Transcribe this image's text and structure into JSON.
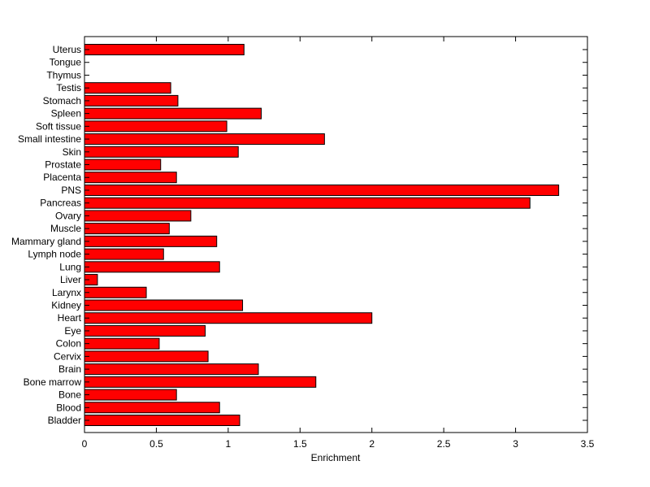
{
  "chart_data": {
    "type": "bar",
    "orientation": "horizontal",
    "title": "",
    "xlabel": "Enrichment",
    "ylabel": "",
    "xlim": [
      0,
      3.5
    ],
    "xticks": [
      0,
      0.5,
      1,
      1.5,
      2,
      2.5,
      3,
      3.5
    ],
    "xtick_labels": [
      "0",
      "0.5",
      "1",
      "1.5",
      "2",
      "2.5",
      "3",
      "3.5"
    ],
    "grid": false,
    "legend": "none",
    "bar_color": "#ff0000",
    "bar_edge_color": "#000000",
    "categories": [
      "Bladder",
      "Blood",
      "Bone",
      "Bone marrow",
      "Brain",
      "Cervix",
      "Colon",
      "Eye",
      "Heart",
      "Kidney",
      "Larynx",
      "Liver",
      "Lung",
      "Lymph node",
      "Mammary gland",
      "Muscle",
      "Ovary",
      "Pancreas",
      "PNS",
      "Placenta",
      "Prostate",
      "Skin",
      "Small intestine",
      "Soft tissue",
      "Spleen",
      "Stomach",
      "Testis",
      "Thymus",
      "Tongue",
      "Uterus"
    ],
    "values": [
      1.08,
      0.94,
      0.64,
      1.61,
      1.21,
      0.86,
      0.52,
      0.84,
      2.0,
      1.1,
      0.43,
      0.09,
      0.94,
      0.55,
      0.92,
      0.59,
      0.74,
      3.1,
      3.3,
      0.64,
      0.53,
      1.07,
      1.67,
      0.99,
      1.23,
      0.65,
      0.6,
      0,
      0,
      1.11
    ]
  }
}
